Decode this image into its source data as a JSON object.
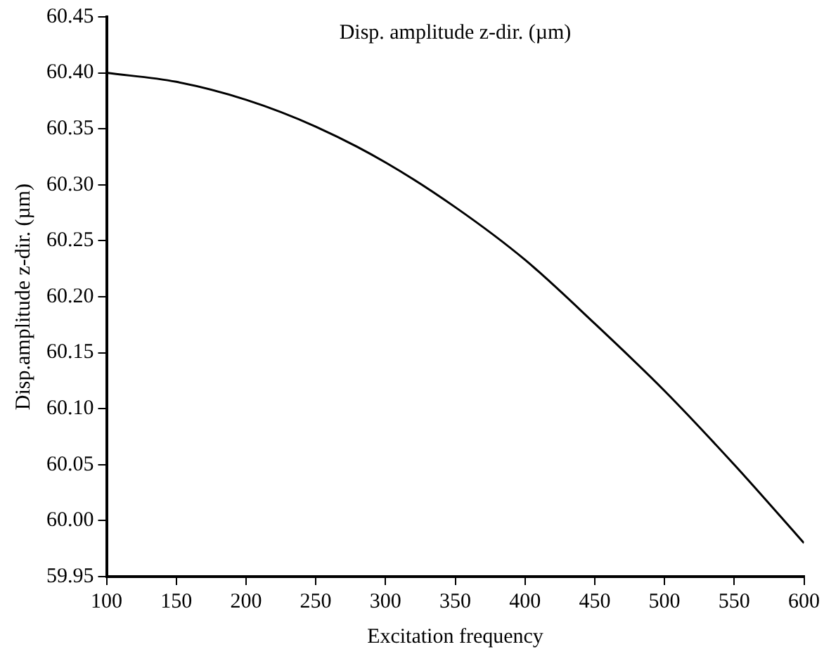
{
  "chart_data": {
    "type": "line",
    "title": "Disp. amplitude z-dir. (µm)",
    "xlabel": "Excitation frequency",
    "ylabel": "Disp.amplitude z-dir. (µm)",
    "x": [
      100,
      150,
      200,
      250,
      300,
      350,
      400,
      450,
      500,
      550,
      600
    ],
    "series": [
      {
        "color": "#000000",
        "values": [
          60.4,
          60.392,
          60.376,
          60.352,
          60.32,
          60.28,
          60.233,
          60.176,
          60.116,
          60.05,
          59.98
        ]
      }
    ],
    "xlim": [
      100,
      600
    ],
    "xticks": [
      100,
      150,
      200,
      250,
      300,
      350,
      400,
      450,
      500,
      550,
      600
    ],
    "ylim": [
      59.95,
      60.45
    ],
    "yticks": [
      {
        "value": 59.95,
        "label": "59.95"
      },
      {
        "value": 60,
        "label": "60.00"
      },
      {
        "value": 60.05,
        "label": "60.05"
      },
      {
        "value": 60.1,
        "label": "60.10"
      },
      {
        "value": 60.15,
        "label": "60.15"
      },
      {
        "value": 60.2,
        "label": "60.20"
      },
      {
        "value": 60.25,
        "label": "60.25"
      },
      {
        "value": 60.3,
        "label": "60.30"
      },
      {
        "value": 60.35,
        "label": "60.35"
      },
      {
        "value": 60.4,
        "label": "60.40"
      },
      {
        "value": 60.45,
        "label": "60.45"
      }
    ],
    "grid": false,
    "legend": false,
    "marker": "none",
    "line_style": "solid"
  }
}
